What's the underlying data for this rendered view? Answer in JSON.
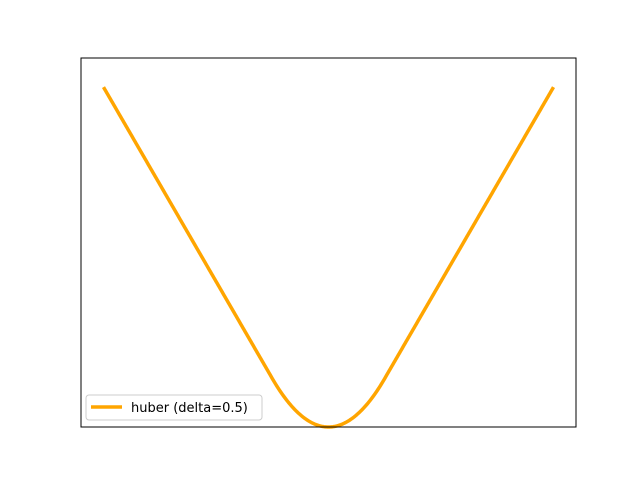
{
  "chart_data": {
    "type": "line",
    "title": "",
    "xlabel": "",
    "ylabel": "",
    "grid": false,
    "legend_placement": "lower-left",
    "xlim": [
      -2.2,
      2.2
    ],
    "ylim": [
      0,
      1.9
    ],
    "series": [
      {
        "name": "huber (delta=0.5)",
        "color": "#FFA500",
        "delta": 0.5,
        "x": [
          -2.0,
          -1.75,
          -1.5,
          -1.25,
          -1.0,
          -0.75,
          -0.5,
          -0.4,
          -0.3,
          -0.2,
          -0.1,
          0.0,
          0.1,
          0.2,
          0.3,
          0.4,
          0.5,
          0.75,
          1.0,
          1.25,
          1.5,
          1.75,
          2.0
        ],
        "y": [
          1.75,
          1.5,
          1.25,
          1.0,
          0.75,
          0.5,
          0.25,
          0.16,
          0.09,
          0.04,
          0.01,
          0.0,
          0.01,
          0.04,
          0.09,
          0.16,
          0.25,
          0.5,
          0.75,
          1.0,
          1.25,
          1.5,
          1.75
        ]
      }
    ]
  },
  "colors": {
    "line": "#FFA500",
    "axes": "#000000",
    "legend_border": "#cccccc",
    "background": "#ffffff"
  }
}
